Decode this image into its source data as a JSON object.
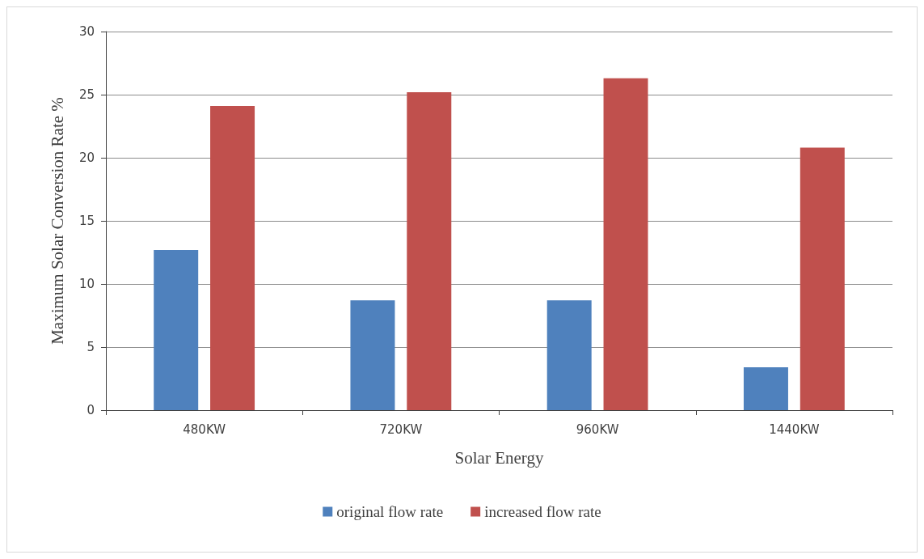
{
  "chart_data": {
    "type": "bar",
    "xlabel": "Solar Energy",
    "ylabel": "Maximum Solar Conversion Rate %",
    "categories": [
      "480KW",
      "720KW",
      "960KW",
      "1440KW"
    ],
    "series": [
      {
        "name": "original flow rate",
        "color": "#4f81bd",
        "values": [
          12.7,
          8.7,
          8.7,
          3.4
        ]
      },
      {
        "name": "increased flow rate",
        "color": "#c0504d",
        "values": [
          24.1,
          25.2,
          26.3,
          20.8
        ]
      }
    ],
    "ylim": [
      0,
      30
    ],
    "yticks": [
      0,
      5,
      10,
      15,
      20,
      25,
      30
    ],
    "grid": "y",
    "legend": "bottom"
  }
}
